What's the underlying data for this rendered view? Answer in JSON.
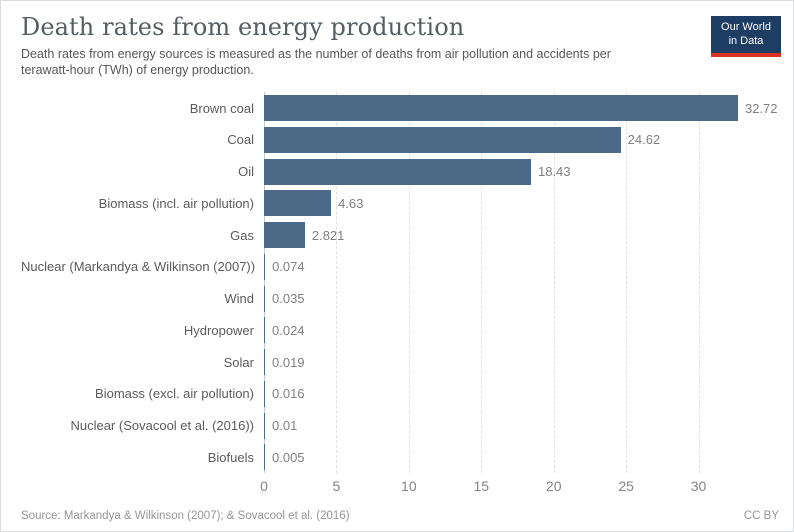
{
  "header": {
    "title": "Death rates from energy production",
    "subtitle": "Death rates from energy sources is measured as the number of deaths from air pollution and accidents per terawatt-hour (TWh) of energy production.",
    "logo": {
      "line1": "Our World",
      "line2": "in Data",
      "bg_color": "#1d3d63",
      "stripe_color": "#dc3122"
    }
  },
  "chart_data": {
    "type": "bar",
    "orientation": "horizontal",
    "title": "Death rates from energy production",
    "xlabel": "",
    "ylabel": "",
    "categories": [
      "Brown coal",
      "Coal",
      "Oil",
      "Biomass (incl. air pollution)",
      "Gas",
      "Nuclear (Markandya & Wilkinson (2007))",
      "Wind",
      "Hydropower",
      "Solar",
      "Biomass (excl. air pollution)",
      "Nuclear (Sovacool et al. (2016))",
      "Biofuels"
    ],
    "values": [
      32.72,
      24.62,
      18.43,
      4.63,
      2.821,
      0.074,
      0.035,
      0.024,
      0.019,
      0.016,
      0.01,
      0.005
    ],
    "value_labels": [
      "32.72",
      "24.62",
      "18.43",
      "4.63",
      "2.821",
      "0.074",
      "0.035",
      "0.024",
      "0.019",
      "0.016",
      "0.01",
      "0.005"
    ],
    "xlim": [
      0,
      35
    ],
    "x_ticks": [
      0,
      5,
      10,
      15,
      20,
      25,
      30
    ],
    "grid": "vertical-dashed",
    "legend": "none",
    "bar_color": "#4c6a87"
  },
  "footer": {
    "source": "Source: Markandya & Wilkinson (2007); & Sovacool et al. (2016)",
    "license": "CC BY"
  }
}
